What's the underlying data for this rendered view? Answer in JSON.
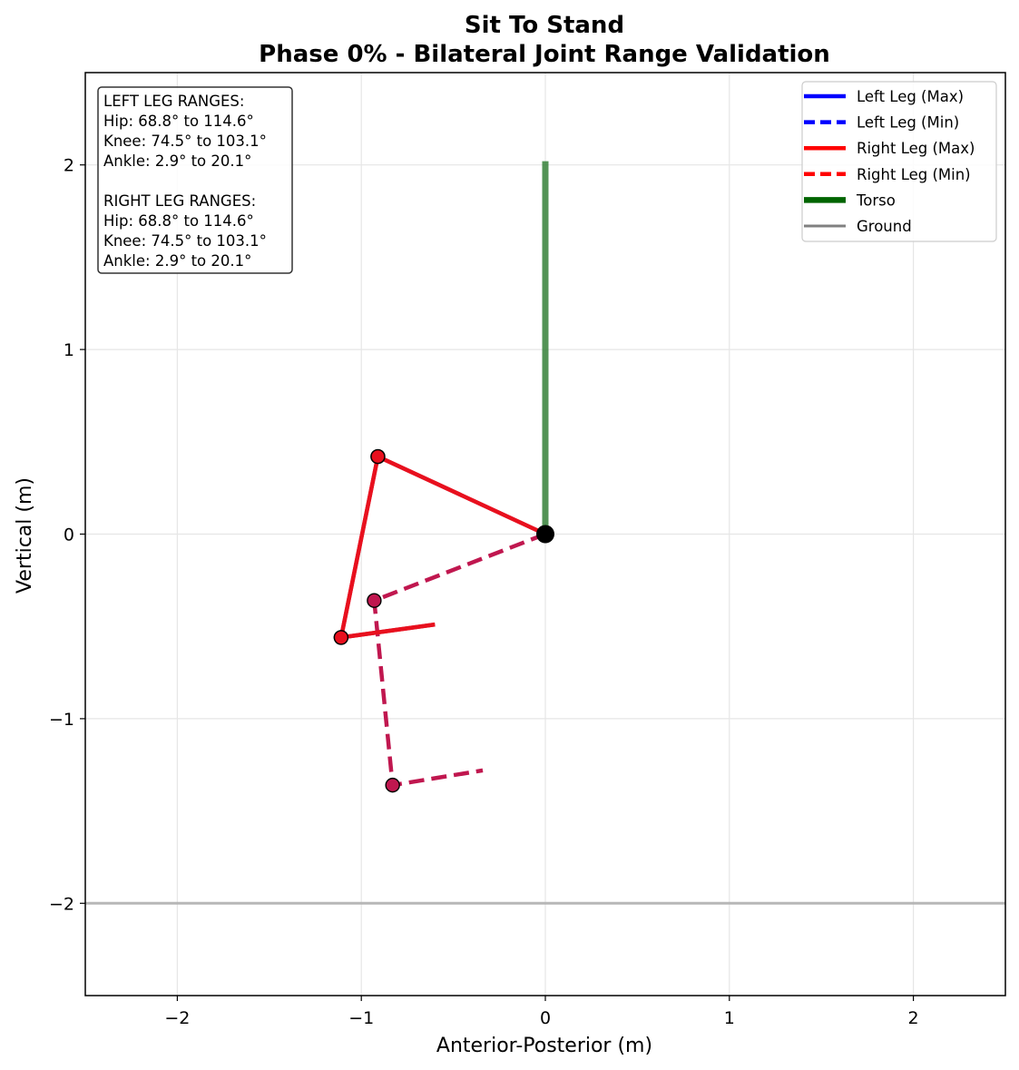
{
  "chart_data": {
    "type": "line",
    "title": "Sit To Stand",
    "subtitle": "Phase 0% - Bilateral Joint Range Validation",
    "xlabel": "Anterior-Posterior (m)",
    "ylabel": "Vertical (m)",
    "xlim": [
      -2.5,
      2.5
    ],
    "ylim": [
      -2.5,
      2.5
    ],
    "x_ticks": [
      -2,
      -1,
      0,
      1,
      2
    ],
    "y_ticks": [
      -2,
      -1,
      0,
      1,
      2
    ],
    "x_tick_labels": [
      "−2",
      "−1",
      "0",
      "1",
      "2"
    ],
    "y_tick_labels": [
      "−2",
      "−1",
      "0",
      "1",
      "2"
    ],
    "grid": true,
    "legend_position": "top-right",
    "info_box_position": "top-left",
    "info_lines": [
      "LEFT LEG RANGES:",
      "Hip: 68.8° to 114.6°",
      "Knee: 74.5° to 103.1°",
      "Ankle: 2.9° to 20.1°",
      "",
      "RIGHT LEG RANGES:",
      "Hip: 68.8° to 114.6°",
      "Knee: 74.5° to 103.1°",
      "Ankle: 2.9° to 20.1°"
    ],
    "legend": [
      {
        "name": "Left Leg (Max)",
        "color": "#0000ff",
        "style": "solid"
      },
      {
        "name": "Left Leg (Min)",
        "color": "#0000ff",
        "style": "dashed"
      },
      {
        "name": "Right Leg (Max)",
        "color": "#ff0000",
        "style": "solid"
      },
      {
        "name": "Right Leg (Min)",
        "color": "#ff0000",
        "style": "dashed"
      },
      {
        "name": "Torso",
        "color": "#006400",
        "style": "solid-thick"
      },
      {
        "name": "Ground",
        "color": "#808080",
        "style": "solid"
      }
    ],
    "series": [
      {
        "name": "Torso",
        "color": "#2e7d32",
        "style": "solid-thick",
        "points": [
          [
            0,
            0
          ],
          [
            0,
            2.02
          ]
        ]
      },
      {
        "name": "Ground",
        "color": "#b0b0b0",
        "style": "solid",
        "points": [
          [
            -2.5,
            -2.0
          ],
          [
            2.5,
            -2.0
          ]
        ]
      },
      {
        "name": "Left Leg (Min)",
        "color": "#c0174f",
        "style": "dashed",
        "points": [
          [
            0,
            0
          ],
          [
            -0.93,
            -0.36
          ],
          [
            -0.83,
            -1.36
          ],
          [
            -0.34,
            -1.28
          ]
        ],
        "joints": [
          [
            -0.93,
            -0.36
          ],
          [
            -0.83,
            -1.36
          ]
        ]
      },
      {
        "name": "Left Leg (Max)",
        "color": "#d81b3a",
        "style": "solid",
        "points": [
          [
            0,
            0
          ],
          [
            -0.91,
            0.42
          ],
          [
            -1.11,
            -0.56
          ],
          [
            -0.6,
            -0.49
          ]
        ],
        "joints": [
          [
            -0.91,
            0.42
          ],
          [
            -1.11,
            -0.56
          ]
        ]
      },
      {
        "name": "Right Leg (Max)",
        "color": "#e8101e",
        "style": "solid",
        "points": [
          [
            0,
            0
          ],
          [
            -0.91,
            0.42
          ],
          [
            -1.11,
            -0.56
          ],
          [
            -0.6,
            -0.49
          ]
        ],
        "joints": [
          [
            -0.91,
            0.42
          ],
          [
            -1.11,
            -0.56
          ]
        ]
      }
    ],
    "hip_point": [
      0,
      0
    ],
    "colors": {
      "hip_marker": "#000000",
      "grid": "#e6e6e6",
      "axes_frame": "#000000",
      "joint_max": "#e8101e",
      "joint_min": "#c0174f",
      "info_box_border": "#333333",
      "legend_border": "#cccccc"
    }
  }
}
